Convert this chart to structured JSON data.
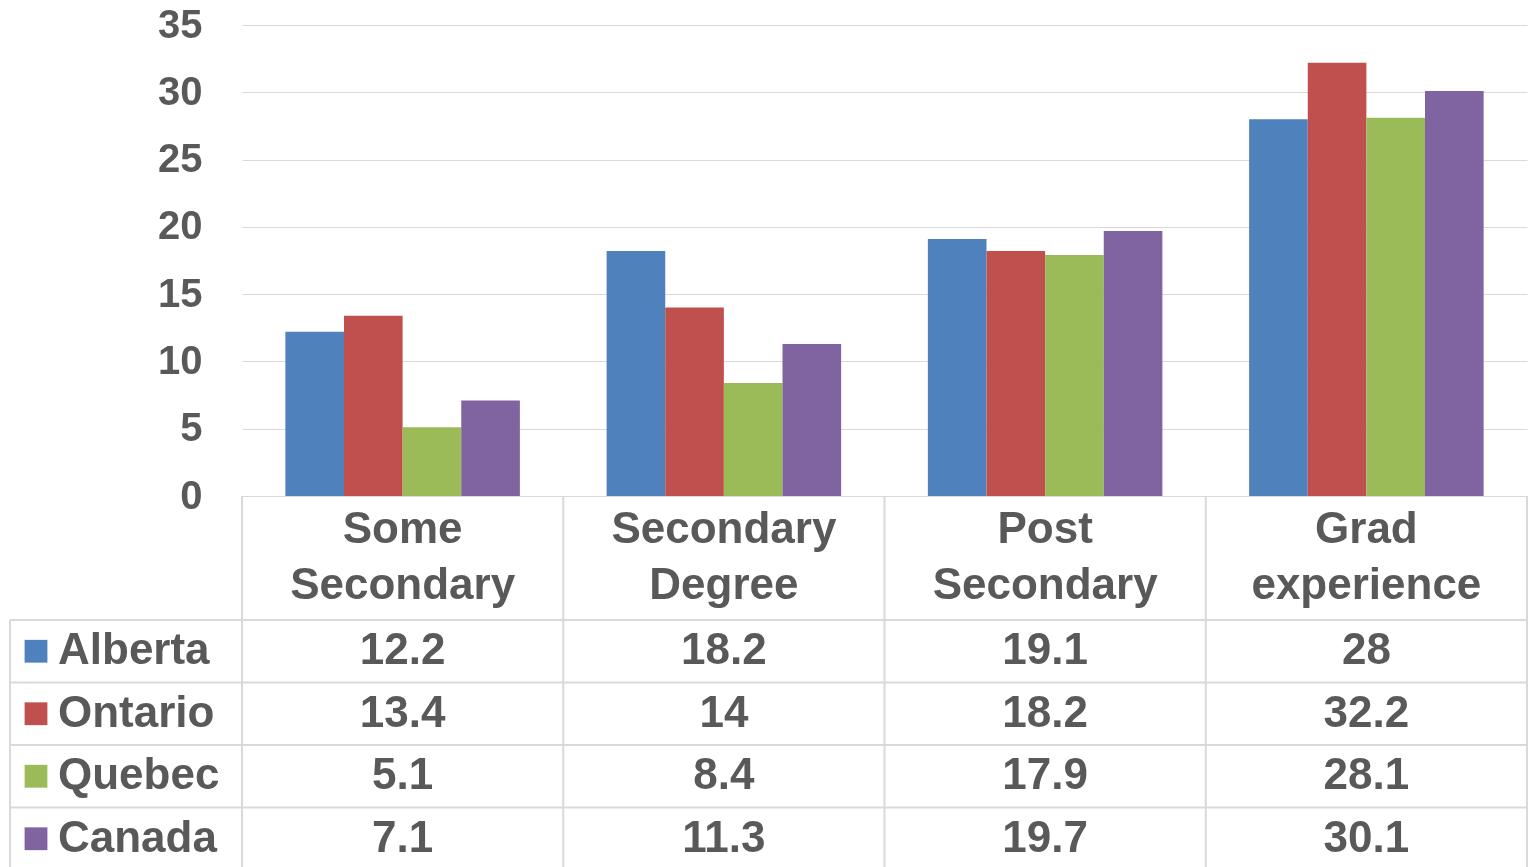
{
  "chart_data": {
    "type": "bar",
    "categories": [
      "Some Secondary",
      "Secondary Degree",
      "Post Secondary",
      "Grad experience"
    ],
    "series": [
      {
        "name": "Alberta",
        "color": "#4f81bd",
        "values": [
          12.2,
          18.2,
          19.1,
          28
        ]
      },
      {
        "name": "Ontario",
        "color": "#c0504d",
        "values": [
          13.4,
          14,
          18.2,
          32.2
        ]
      },
      {
        "name": "Quebec",
        "color": "#9bbb59",
        "values": [
          5.1,
          8.4,
          17.9,
          28.1
        ]
      },
      {
        "name": "Canada",
        "color": "#8064a2",
        "values": [
          7.1,
          11.3,
          19.7,
          30.1
        ]
      }
    ],
    "ylim": [
      0,
      35
    ],
    "yticks": [
      0,
      5,
      10,
      15,
      20,
      25,
      30,
      35
    ],
    "grid": "y",
    "legend": "bottom",
    "data_labels": true
  }
}
